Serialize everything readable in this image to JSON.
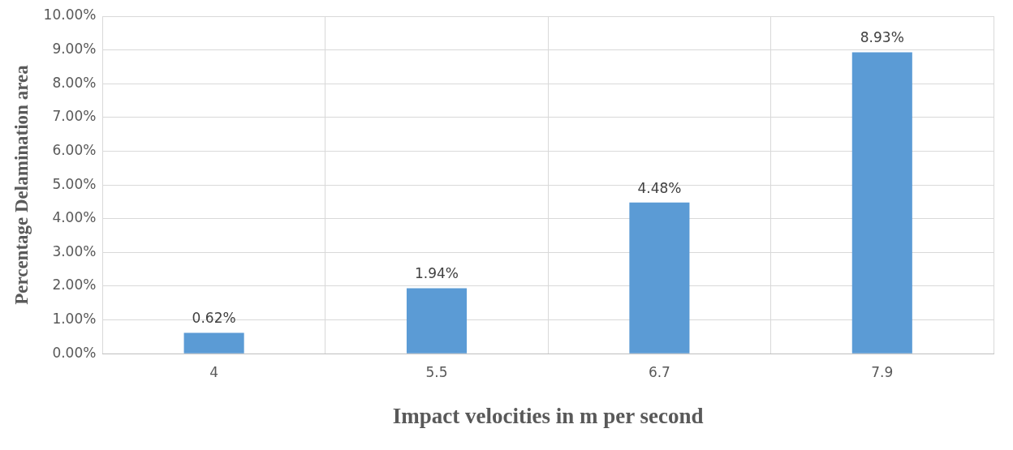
{
  "chart_data": {
    "type": "bar",
    "xlabel": "Impact velocities in m per second",
    "ylabel": "Percentage Delamination area",
    "categories": [
      "4",
      "5.5",
      "6.7",
      "7.9"
    ],
    "values": [
      0.62,
      1.94,
      4.48,
      8.93
    ],
    "color": "#5b9bd5",
    "value_labels": [
      "0.62%",
      "1.94%",
      "4.48%",
      "8.93%"
    ],
    "ylim": [
      0,
      10
    ],
    "yticks": [
      {
        "value": 0,
        "label": "0.00%"
      },
      {
        "value": 1,
        "label": "1.00%"
      },
      {
        "value": 2,
        "label": "2.00%"
      },
      {
        "value": 3,
        "label": "3.00%"
      },
      {
        "value": 4,
        "label": "4.00%"
      },
      {
        "value": 5,
        "label": "5.00%"
      },
      {
        "value": 6,
        "label": "6.00%"
      },
      {
        "value": 7,
        "label": "7.00%"
      },
      {
        "value": 8,
        "label": "8.00%"
      },
      {
        "value": 9,
        "label": "9.00%"
      },
      {
        "value": 10,
        "label": "10.00%"
      }
    ],
    "grid": true,
    "legend": false
  }
}
